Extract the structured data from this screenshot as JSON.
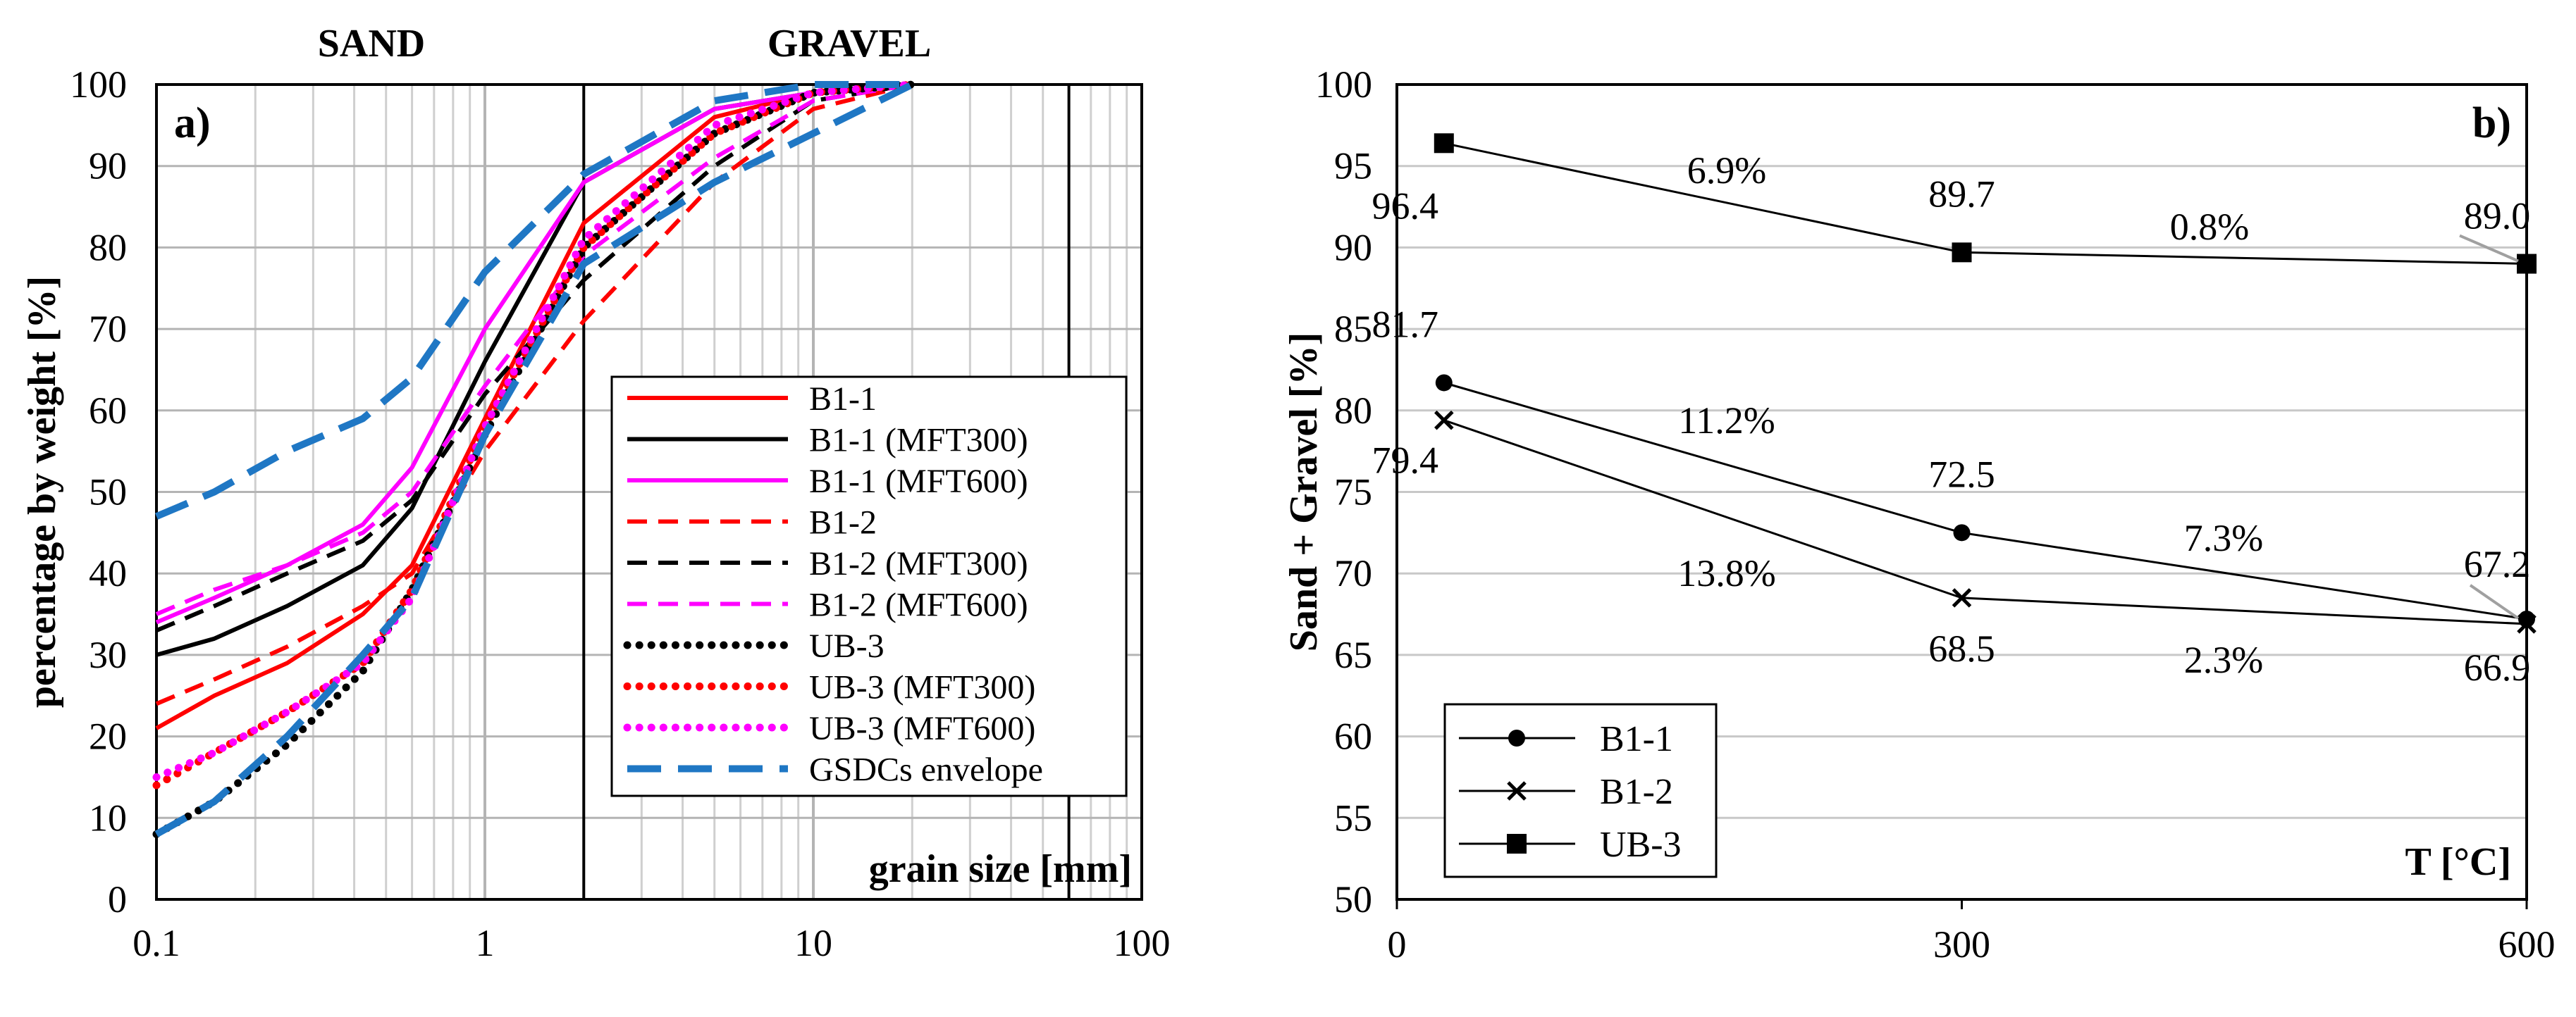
{
  "chart_data": [
    {
      "panel": "a)",
      "type": "line",
      "xscale": "log",
      "xlim": [
        0.1,
        100
      ],
      "ylim": [
        0,
        100
      ],
      "xticks": [
        "0.1",
        "1",
        "10",
        "100"
      ],
      "yticks": [
        "0",
        "10",
        "20",
        "30",
        "40",
        "50",
        "60",
        "70",
        "80",
        "90",
        "100"
      ],
      "xlabel": "grain size [mm]",
      "ylabel": "percentage by weight [%]",
      "region_labels": [
        "SAND",
        "GRAVEL"
      ],
      "region_boundaries": [
        2,
        60
      ],
      "grid": true,
      "legend_position": "right-middle",
      "series": [
        {
          "name": "B1-1",
          "color": "#ff0000",
          "style": "solid",
          "x": [
            0.1,
            0.15,
            0.25,
            0.425,
            0.6,
            1,
            2,
            5,
            10,
            20
          ],
          "y": [
            21,
            25,
            29,
            35,
            41,
            59,
            83,
            96,
            99,
            100
          ]
        },
        {
          "name": "B1-1 (MFT300)",
          "color": "#000000",
          "style": "solid",
          "x": [
            0.1,
            0.15,
            0.25,
            0.425,
            0.6,
            1,
            2,
            5,
            10,
            20
          ],
          "y": [
            30,
            32,
            36,
            41,
            48,
            66,
            88,
            97,
            99,
            100
          ]
        },
        {
          "name": "B1-1 (MFT600)",
          "color": "#ff00ff",
          "style": "solid",
          "x": [
            0.1,
            0.15,
            0.25,
            0.425,
            0.6,
            1,
            2,
            5,
            10,
            20
          ],
          "y": [
            34,
            37,
            41,
            46,
            53,
            70,
            88,
            97,
            99,
            100
          ]
        },
        {
          "name": "B1-2",
          "color": "#ff0000",
          "style": "dashed",
          "x": [
            0.1,
            0.15,
            0.25,
            0.425,
            0.6,
            1,
            2,
            5,
            10,
            20
          ],
          "y": [
            24,
            27,
            31,
            36,
            40,
            55,
            71,
            88,
            97,
            100
          ]
        },
        {
          "name": "B1-2 (MFT300)",
          "color": "#000000",
          "style": "dashed",
          "x": [
            0.1,
            0.15,
            0.25,
            0.425,
            0.6,
            1,
            2,
            5,
            10,
            20
          ],
          "y": [
            33,
            36,
            40,
            44,
            49,
            62,
            76,
            90,
            98,
            100
          ]
        },
        {
          "name": "B1-2 (MFT600)",
          "color": "#ff00ff",
          "style": "dashed",
          "x": [
            0.1,
            0.15,
            0.25,
            0.425,
            0.6,
            1,
            2,
            5,
            10,
            20
          ],
          "y": [
            35,
            38,
            41,
            45,
            50,
            63,
            79,
            91,
            98,
            100
          ]
        },
        {
          "name": "UB-3",
          "color": "#000000",
          "style": "dotted",
          "x": [
            0.1,
            0.15,
            0.25,
            0.425,
            0.6,
            1,
            2,
            5,
            10,
            20
          ],
          "y": [
            8,
            12,
            19,
            28,
            38,
            57,
            80,
            94,
            99,
            100
          ]
        },
        {
          "name": "UB-3 (MFT300)",
          "color": "#ff0000",
          "style": "dotted",
          "x": [
            0.1,
            0.15,
            0.25,
            0.425,
            0.6,
            1,
            2,
            5,
            10,
            20
          ],
          "y": [
            14,
            18,
            23,
            29,
            38,
            58,
            80,
            94,
            99,
            100
          ]
        },
        {
          "name": "UB-3 (MFT600)",
          "color": "#ff00ff",
          "style": "dotted",
          "x": [
            0.1,
            0.15,
            0.25,
            0.425,
            0.6,
            1,
            2,
            5,
            10,
            20
          ],
          "y": [
            15,
            18,
            23,
            29,
            37,
            58,
            81,
            95,
            99,
            100
          ]
        },
        {
          "name": "GSDCs envelope",
          "color": "#1f77c4",
          "style": "dashed-thick",
          "x": [
            0.1,
            0.15,
            0.25,
            0.425,
            0.6,
            1,
            2,
            5,
            10,
            20
          ],
          "y": [
            8,
            12,
            20,
            30,
            37,
            57,
            78,
            88,
            94,
            100
          ]
        },
        {
          "name": "",
          "color": "#1f77c4",
          "style": "dashed-thick",
          "x": [
            0.1,
            0.15,
            0.25,
            0.425,
            0.6,
            1,
            2,
            5,
            10,
            20
          ],
          "y": [
            47,
            50,
            55,
            59,
            64,
            77,
            89,
            98,
            100,
            100
          ]
        }
      ]
    },
    {
      "panel": "b)",
      "type": "line",
      "xlim": [
        0,
        600
      ],
      "ylim": [
        50,
        100
      ],
      "xticks": [
        "0",
        "300",
        "600"
      ],
      "yticks": [
        "50",
        "55",
        "60",
        "65",
        "70",
        "75",
        "80",
        "85",
        "90",
        "95",
        "100"
      ],
      "xlabel": "T [°C]",
      "ylabel": "Sand + Gravel [%]",
      "grid": "horizontal",
      "legend_position": "bottom-left",
      "series": [
        {
          "name": "B1-1",
          "marker": "circle",
          "x": [
            25,
            300,
            600
          ],
          "y": [
            81.7,
            72.5,
            67.2
          ],
          "labels": [
            "81.7",
            "72.5",
            "67.2"
          ]
        },
        {
          "name": "B1-2",
          "marker": "cross",
          "x": [
            25,
            300,
            600
          ],
          "y": [
            79.4,
            68.5,
            66.9
          ],
          "labels": [
            "79.4",
            "68.5",
            "66.9"
          ]
        },
        {
          "name": "UB-3",
          "marker": "square",
          "x": [
            25,
            300,
            600
          ],
          "y": [
            96.4,
            89.7,
            89.0
          ],
          "labels": [
            "96.4",
            "89.7",
            "89.0"
          ]
        }
      ],
      "percent_changes": [
        "6.9%",
        "0.8%",
        "11.2%",
        "7.3%",
        "13.8%",
        "2.3%"
      ]
    }
  ]
}
